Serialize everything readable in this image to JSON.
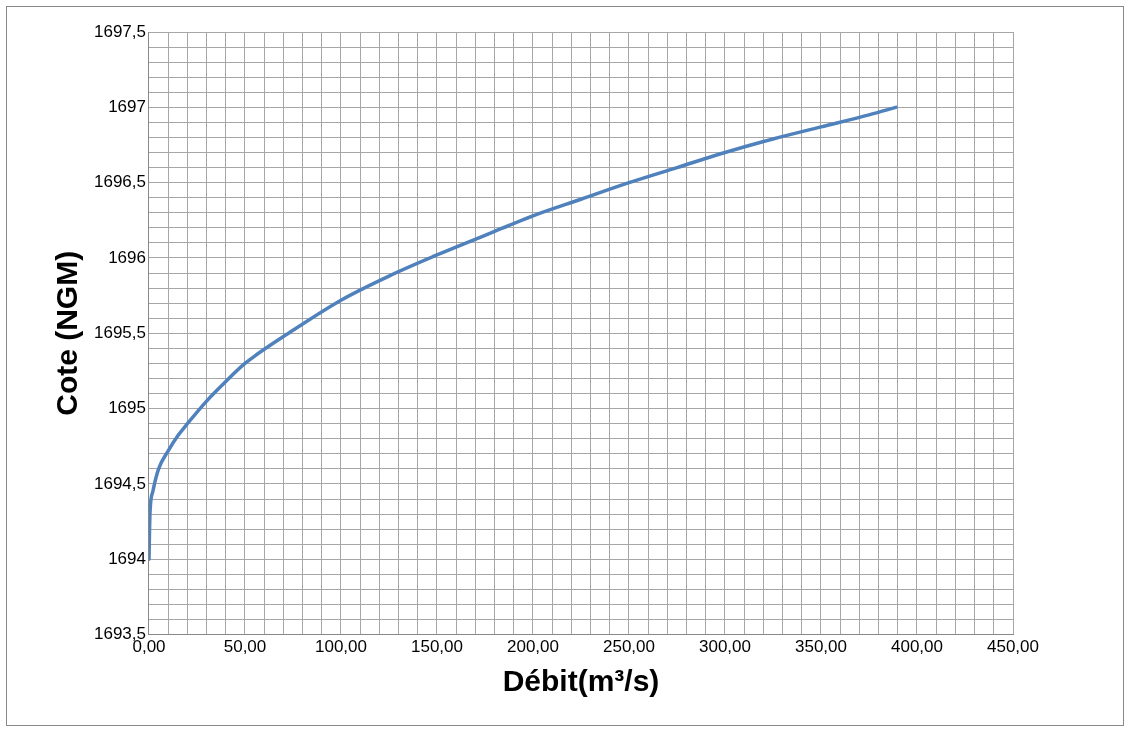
{
  "chart_data": {
    "type": "line",
    "xlabel": "Débit(m³/s)",
    "ylabel": "Cote (NGM)",
    "grid": true,
    "legend": false,
    "marker": "none",
    "line_style": "solid",
    "x": [
      0,
      0.5,
      2,
      5,
      10,
      15,
      20,
      30,
      40,
      50,
      75,
      100,
      125,
      150,
      175,
      200,
      225,
      250,
      275,
      300,
      325,
      350,
      375,
      389
    ],
    "series": [
      {
        "color": "#4f81bd",
        "values": [
          1694.0,
          1694.3,
          1694.45,
          1694.6,
          1694.72,
          1694.82,
          1694.9,
          1695.05,
          1695.18,
          1695.3,
          1695.52,
          1695.72,
          1695.88,
          1696.02,
          1696.15,
          1696.28,
          1696.39,
          1696.5,
          1696.6,
          1696.7,
          1696.79,
          1696.87,
          1696.95,
          1697.0
        ]
      }
    ],
    "xlim": [
      0,
      450
    ],
    "xticks": [
      {
        "value": 0,
        "label": "0,00"
      },
      {
        "value": 10,
        "label": null
      },
      {
        "value": 20,
        "label": null
      },
      {
        "value": 30,
        "label": null
      },
      {
        "value": 40,
        "label": null
      },
      {
        "value": 50,
        "label": "50,00"
      },
      {
        "value": 60,
        "label": null
      },
      {
        "value": 70,
        "label": null
      },
      {
        "value": 80,
        "label": null
      },
      {
        "value": 90,
        "label": null
      },
      {
        "value": 100,
        "label": "100,00"
      },
      {
        "value": 110,
        "label": null
      },
      {
        "value": 120,
        "label": null
      },
      {
        "value": 130,
        "label": null
      },
      {
        "value": 140,
        "label": null
      },
      {
        "value": 150,
        "label": "150,00"
      },
      {
        "value": 160,
        "label": null
      },
      {
        "value": 170,
        "label": null
      },
      {
        "value": 180,
        "label": null
      },
      {
        "value": 190,
        "label": null
      },
      {
        "value": 200,
        "label": "200,00"
      },
      {
        "value": 210,
        "label": null
      },
      {
        "value": 220,
        "label": null
      },
      {
        "value": 230,
        "label": null
      },
      {
        "value": 240,
        "label": null
      },
      {
        "value": 250,
        "label": "250,00"
      },
      {
        "value": 260,
        "label": null
      },
      {
        "value": 270,
        "label": null
      },
      {
        "value": 280,
        "label": null
      },
      {
        "value": 290,
        "label": null
      },
      {
        "value": 300,
        "label": "300,00"
      },
      {
        "value": 310,
        "label": null
      },
      {
        "value": 320,
        "label": null
      },
      {
        "value": 330,
        "label": null
      },
      {
        "value": 340,
        "label": null
      },
      {
        "value": 350,
        "label": "350,00"
      },
      {
        "value": 360,
        "label": null
      },
      {
        "value": 370,
        "label": null
      },
      {
        "value": 380,
        "label": null
      },
      {
        "value": 390,
        "label": null
      },
      {
        "value": 400,
        "label": "400,00"
      },
      {
        "value": 410,
        "label": null
      },
      {
        "value": 420,
        "label": null
      },
      {
        "value": 430,
        "label": null
      },
      {
        "value": 440,
        "label": null
      },
      {
        "value": 450,
        "label": "450,00"
      }
    ],
    "ylim": [
      1693.5,
      1697.5
    ],
    "yticks": [
      {
        "value": 1693.5,
        "label": "1693,5"
      },
      {
        "value": 1693.6,
        "label": null
      },
      {
        "value": 1693.7,
        "label": null
      },
      {
        "value": 1693.8,
        "label": null
      },
      {
        "value": 1693.9,
        "label": null
      },
      1694,
      {
        "value": 1694.1,
        "label": null
      },
      {
        "value": 1694.2,
        "label": null
      },
      {
        "value": 1694.3,
        "label": null
      },
      {
        "value": 1694.4,
        "label": null
      },
      {
        "value": 1694.5,
        "label": "1694,5"
      },
      {
        "value": 1694.6,
        "label": null
      },
      {
        "value": 1694.7,
        "label": null
      },
      {
        "value": 1694.8,
        "label": null
      },
      {
        "value": 1694.9,
        "label": null
      },
      1695,
      {
        "value": 1695.1,
        "label": null
      },
      {
        "value": 1695.2,
        "label": null
      },
      {
        "value": 1695.3,
        "label": null
      },
      {
        "value": 1695.4,
        "label": null
      },
      {
        "value": 1695.5,
        "label": "1695,5"
      },
      {
        "value": 1695.6,
        "label": null
      },
      {
        "value": 1695.7,
        "label": null
      },
      {
        "value": 1695.8,
        "label": null
      },
      {
        "value": 1695.9,
        "label": null
      },
      1696,
      {
        "value": 1696.1,
        "label": null
      },
      {
        "value": 1696.2,
        "label": null
      },
      {
        "value": 1696.3,
        "label": null
      },
      {
        "value": 1696.4,
        "label": null
      },
      {
        "value": 1696.5,
        "label": "1696,5"
      },
      {
        "value": 1696.6,
        "label": null
      },
      {
        "value": 1696.7,
        "label": null
      },
      {
        "value": 1696.8,
        "label": null
      },
      {
        "value": 1696.9,
        "label": null
      },
      1697,
      {
        "value": 1697.1,
        "label": null
      },
      {
        "value": 1697.2,
        "label": null
      },
      {
        "value": 1697.3,
        "label": null
      },
      {
        "value": 1697.4,
        "label": null
      },
      {
        "value": 1697.5,
        "label": "1697,5"
      }
    ]
  }
}
